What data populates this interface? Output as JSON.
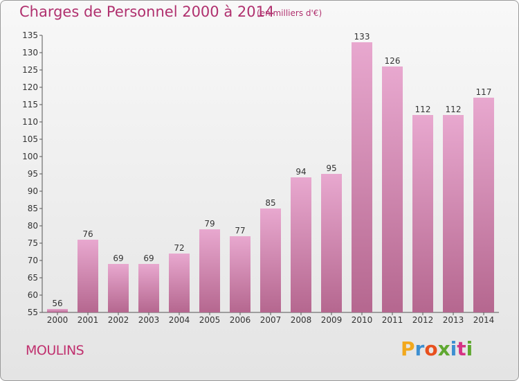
{
  "title": "Charges de Personnel 2000 à 2014",
  "unit": "(en milliers d'€)",
  "place": "MOULINS",
  "logo": {
    "text": "Proxiti",
    "letters": [
      "P",
      "r",
      "o",
      "x",
      "i",
      "t",
      "i"
    ],
    "colors": [
      "#f2a81d",
      "#3d8fd1",
      "#e8501e",
      "#5fa830",
      "#3d8fd1",
      "#d63384",
      "#5fa830"
    ]
  },
  "colors": {
    "bar_top": "#e8a8cf",
    "bar_bottom": "#b5678f",
    "text_accent": "#b0306e"
  },
  "chart_data": {
    "type": "bar",
    "title": "Charges de Personnel 2000 à 2014",
    "xlabel": "",
    "ylabel": "",
    "categories": [
      "2000",
      "2001",
      "2002",
      "2003",
      "2004",
      "2005",
      "2006",
      "2007",
      "2008",
      "2009",
      "2010",
      "2011",
      "2012",
      "2013",
      "2014"
    ],
    "values": [
      56,
      76,
      69,
      69,
      72,
      79,
      77,
      85,
      94,
      95,
      133,
      126,
      112,
      112,
      117
    ],
    "ylim": [
      55,
      135
    ],
    "yticks": [
      55,
      60,
      65,
      70,
      75,
      80,
      85,
      90,
      95,
      100,
      105,
      110,
      115,
      120,
      125,
      130,
      135
    ],
    "grid": false
  }
}
